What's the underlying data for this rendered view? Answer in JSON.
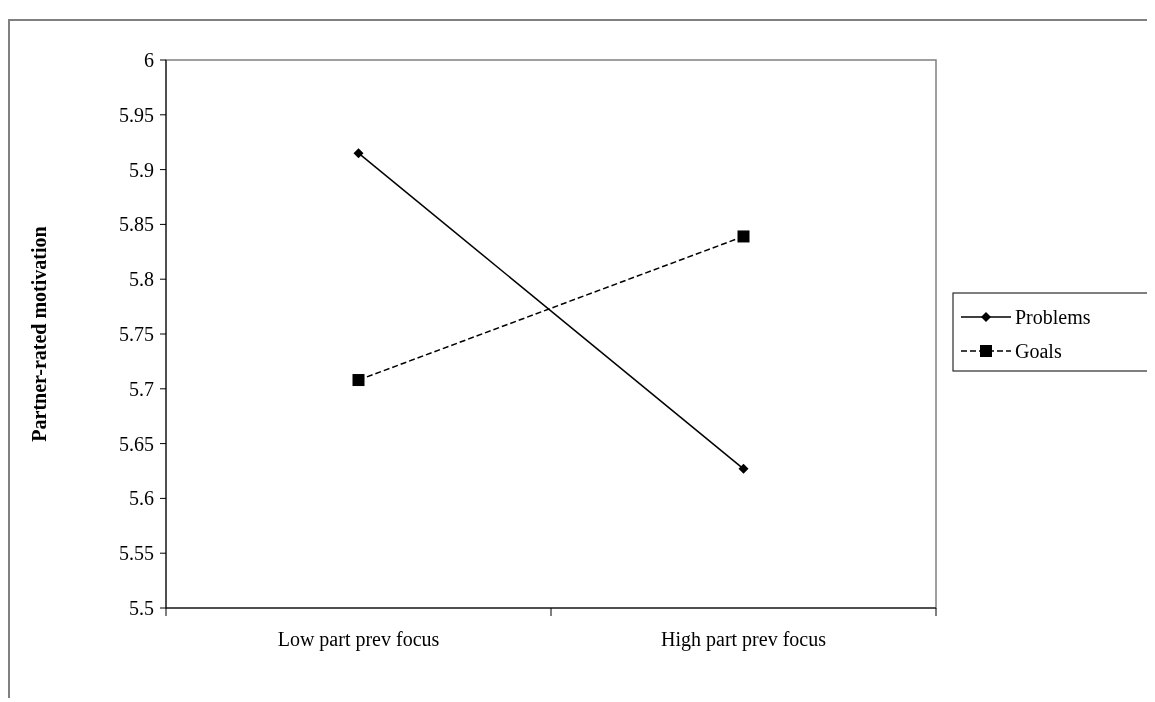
{
  "chart_data": {
    "type": "line",
    "ylabel": "Partner-rated motivation",
    "categories": [
      "Low part prev focus",
      "High part prev focus"
    ],
    "series": [
      {
        "name": "Problems",
        "color": "#000000",
        "values": [
          5.915,
          5.627
        ],
        "marker": "diamond",
        "line_style": "solid"
      },
      {
        "name": "Goals",
        "color": "#000000",
        "values": [
          5.708,
          5.839
        ],
        "marker": "square",
        "line_style": "dashed"
      }
    ],
    "ylim": [
      5.5,
      6
    ],
    "yticks": [
      5.5,
      5.55,
      5.6,
      5.65,
      5.7,
      5.75,
      5.8,
      5.85,
      5.9,
      5.95,
      6
    ],
    "grid": false,
    "legend": "right"
  }
}
